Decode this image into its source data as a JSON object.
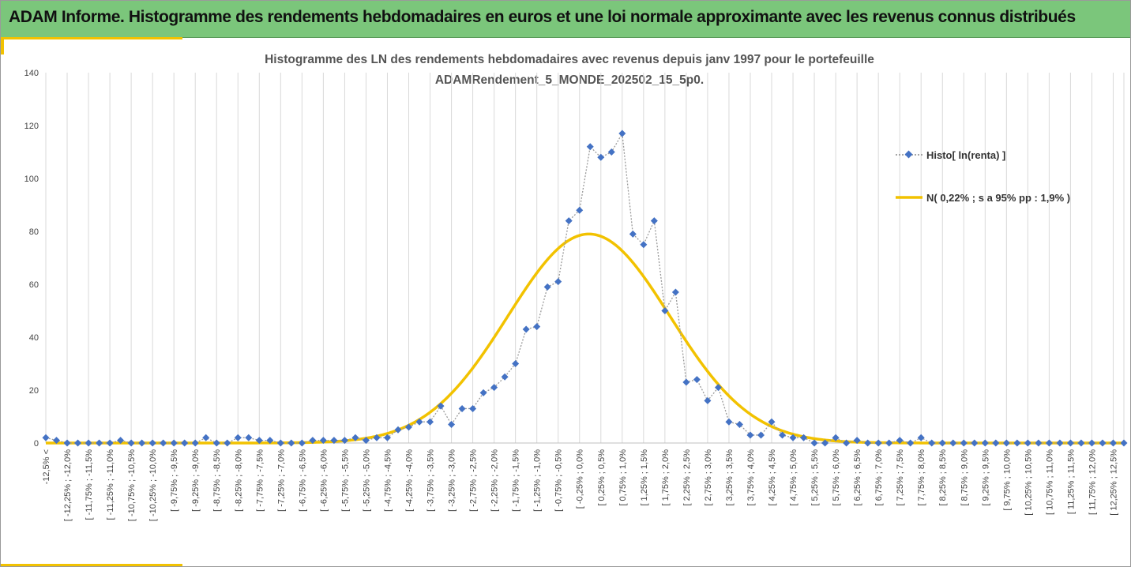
{
  "banner": {
    "title": "ADAM Informe. Histogramme des rendements hebdomadaires en euros et une loi normale approximante avec les revenus connus distribués"
  },
  "colors": {
    "banner": "#7bc67b",
    "accent": "#f2c200",
    "histo": "#4472c4",
    "normal": "#f2c200",
    "grid": "#d9d9d9"
  },
  "chart_data": {
    "type": "line",
    "title_lines": [
      "Histogramme des LN des rendements hebdomadaires avec revenus depuis janv 1997 pour le portefeuille",
      "ADAMRendement_5_MONDE_202502_15_5p0."
    ],
    "ylim": [
      0,
      140
    ],
    "yticks": [
      0,
      20,
      40,
      60,
      80,
      100,
      120,
      140
    ],
    "grid": "vertical",
    "legend_position": "right",
    "x_labels": [
      "-12,5% <",
      "[ -12,25% ; -12,0%",
      "[ -11,75% ; -11,5%",
      "[ -11,25% ; -11,0%",
      "[ -10,75% ; -10,5%",
      "[ -10,25% ; -10,0%",
      "[ -9,75% ; -9,5%",
      "[ -9,25% ; -9,0%",
      "[ -8,75% ; -8,5%",
      "[ -8,25% ; -8,0%",
      "[ -7,75% ; -7,5%",
      "[ -7,25% ; -7,0%",
      "[ -6,75% ; -6,5%",
      "[ -6,25% ; -6,0%",
      "[ -5,75% ; -5,5%",
      "[ -5,25% ; -5,0%",
      "[ -4,75% ; -4,5%",
      "[ -4,25% ; -4,0%",
      "[ -3,75% ; -3,5%",
      "[ -3,25% ; -3,0%",
      "[ -2,75% ; -2,5%",
      "[ -2,25% ; -2,0%",
      "[ -1,75% ; -1,5%",
      "[ -1,25% ; -1,0%",
      "[ -0,75% ; -0,5%",
      "[ -0,25% ; 0,0%",
      "[ 0,25% ; 0,5%",
      "[ 0,75% ; 1,0%",
      "[ 1,25% ; 1,5%",
      "[ 1,75% ; 2,0%",
      "[ 2,25% ; 2,5%",
      "[ 2,75% ; 3,0%",
      "[ 3,25% ; 3,5%",
      "[ 3,75% ; 4,0%",
      "[ 4,25% ; 4,5%",
      "[ 4,75% ; 5,0%",
      "[ 5,25% ; 5,5%",
      "[ 5,75% ; 6,0%",
      "[ 6,25% ; 6,5%",
      "[ 6,75% ; 7,0%",
      "[ 7,25% ; 7,5%",
      "[ 7,75% ; 8,0%",
      "[ 8,25% ; 8,5%",
      "[ 8,75% ; 9,0%",
      "[ 9,25% ; 9,5%",
      "[ 9,75% ; 10,0%",
      "[ 10,25% ; 10,5%",
      "[ 10,75% ; 11,0%",
      "[ 11,25% ; 11,5%",
      "[ 11,75% ; 12,0%",
      "[ 12,25% ; 12,5%"
    ],
    "series": [
      {
        "name": "Histo[ ln(renta) ]",
        "style": "dotted-line-diamond-markers",
        "values": [
          2,
          1,
          0,
          0,
          0,
          0,
          0,
          1,
          0,
          0,
          0,
          0,
          0,
          0,
          0,
          2,
          0,
          0,
          2,
          2,
          1,
          1,
          0,
          0,
          0,
          1,
          1,
          1,
          1,
          2,
          1,
          2,
          2,
          5,
          6,
          8,
          8,
          14,
          7,
          13,
          13,
          19,
          21,
          25,
          30,
          43,
          44,
          59,
          61,
          84,
          88,
          112,
          108,
          110,
          117,
          79,
          75,
          84,
          50,
          57,
          23,
          24,
          16,
          21,
          8,
          7,
          3,
          3,
          8,
          3,
          2,
          2,
          0,
          0,
          2,
          0,
          1,
          0,
          0,
          0,
          1,
          0,
          2,
          0,
          0,
          0,
          0,
          0,
          0,
          0,
          0,
          0,
          0,
          0,
          0,
          0,
          0,
          0,
          0,
          0,
          0,
          0
        ]
      },
      {
        "name": "N( 0,22% ; s a 95% pp : 1,9% )",
        "style": "smooth-line",
        "mean_percent": 0.22,
        "sd_percent": 1.9,
        "peak": 79
      }
    ]
  }
}
